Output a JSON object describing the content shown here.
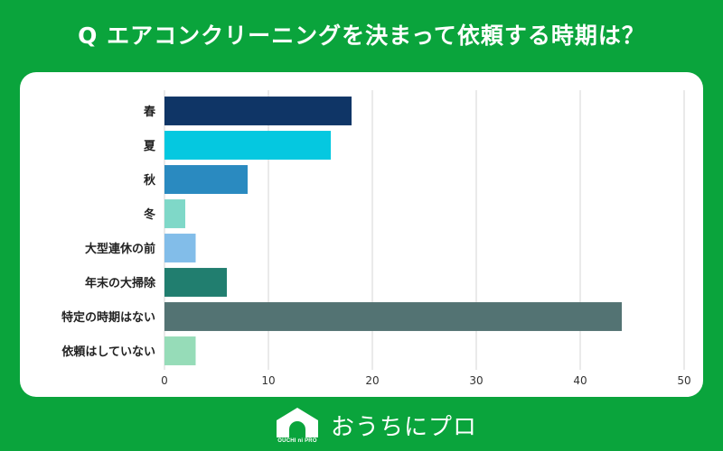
{
  "title": "Q エアコンクリーニングを決まって依頼する時期は？",
  "chart_data": {
    "type": "bar",
    "orientation": "horizontal",
    "categories": [
      "春",
      "夏",
      "秋",
      "冬",
      "大型連休の前",
      "年末の大掃除",
      "特定の時期はない",
      "依頼はしていない"
    ],
    "values": [
      18,
      16,
      8,
      2,
      3,
      6,
      44,
      3
    ],
    "colors": [
      "#0f3566",
      "#05c8e0",
      "#2a8ac0",
      "#7fd8c8",
      "#82bde9",
      "#217e6f",
      "#537373",
      "#96dcb8"
    ],
    "xlim": [
      0,
      50
    ],
    "xticks": [
      0,
      10,
      20,
      30,
      40,
      50
    ],
    "grid": true,
    "xlabel": "",
    "ylabel": ""
  },
  "brand": {
    "logo_text": "OUCHI ni PRO",
    "name": "おうちにプロ"
  }
}
